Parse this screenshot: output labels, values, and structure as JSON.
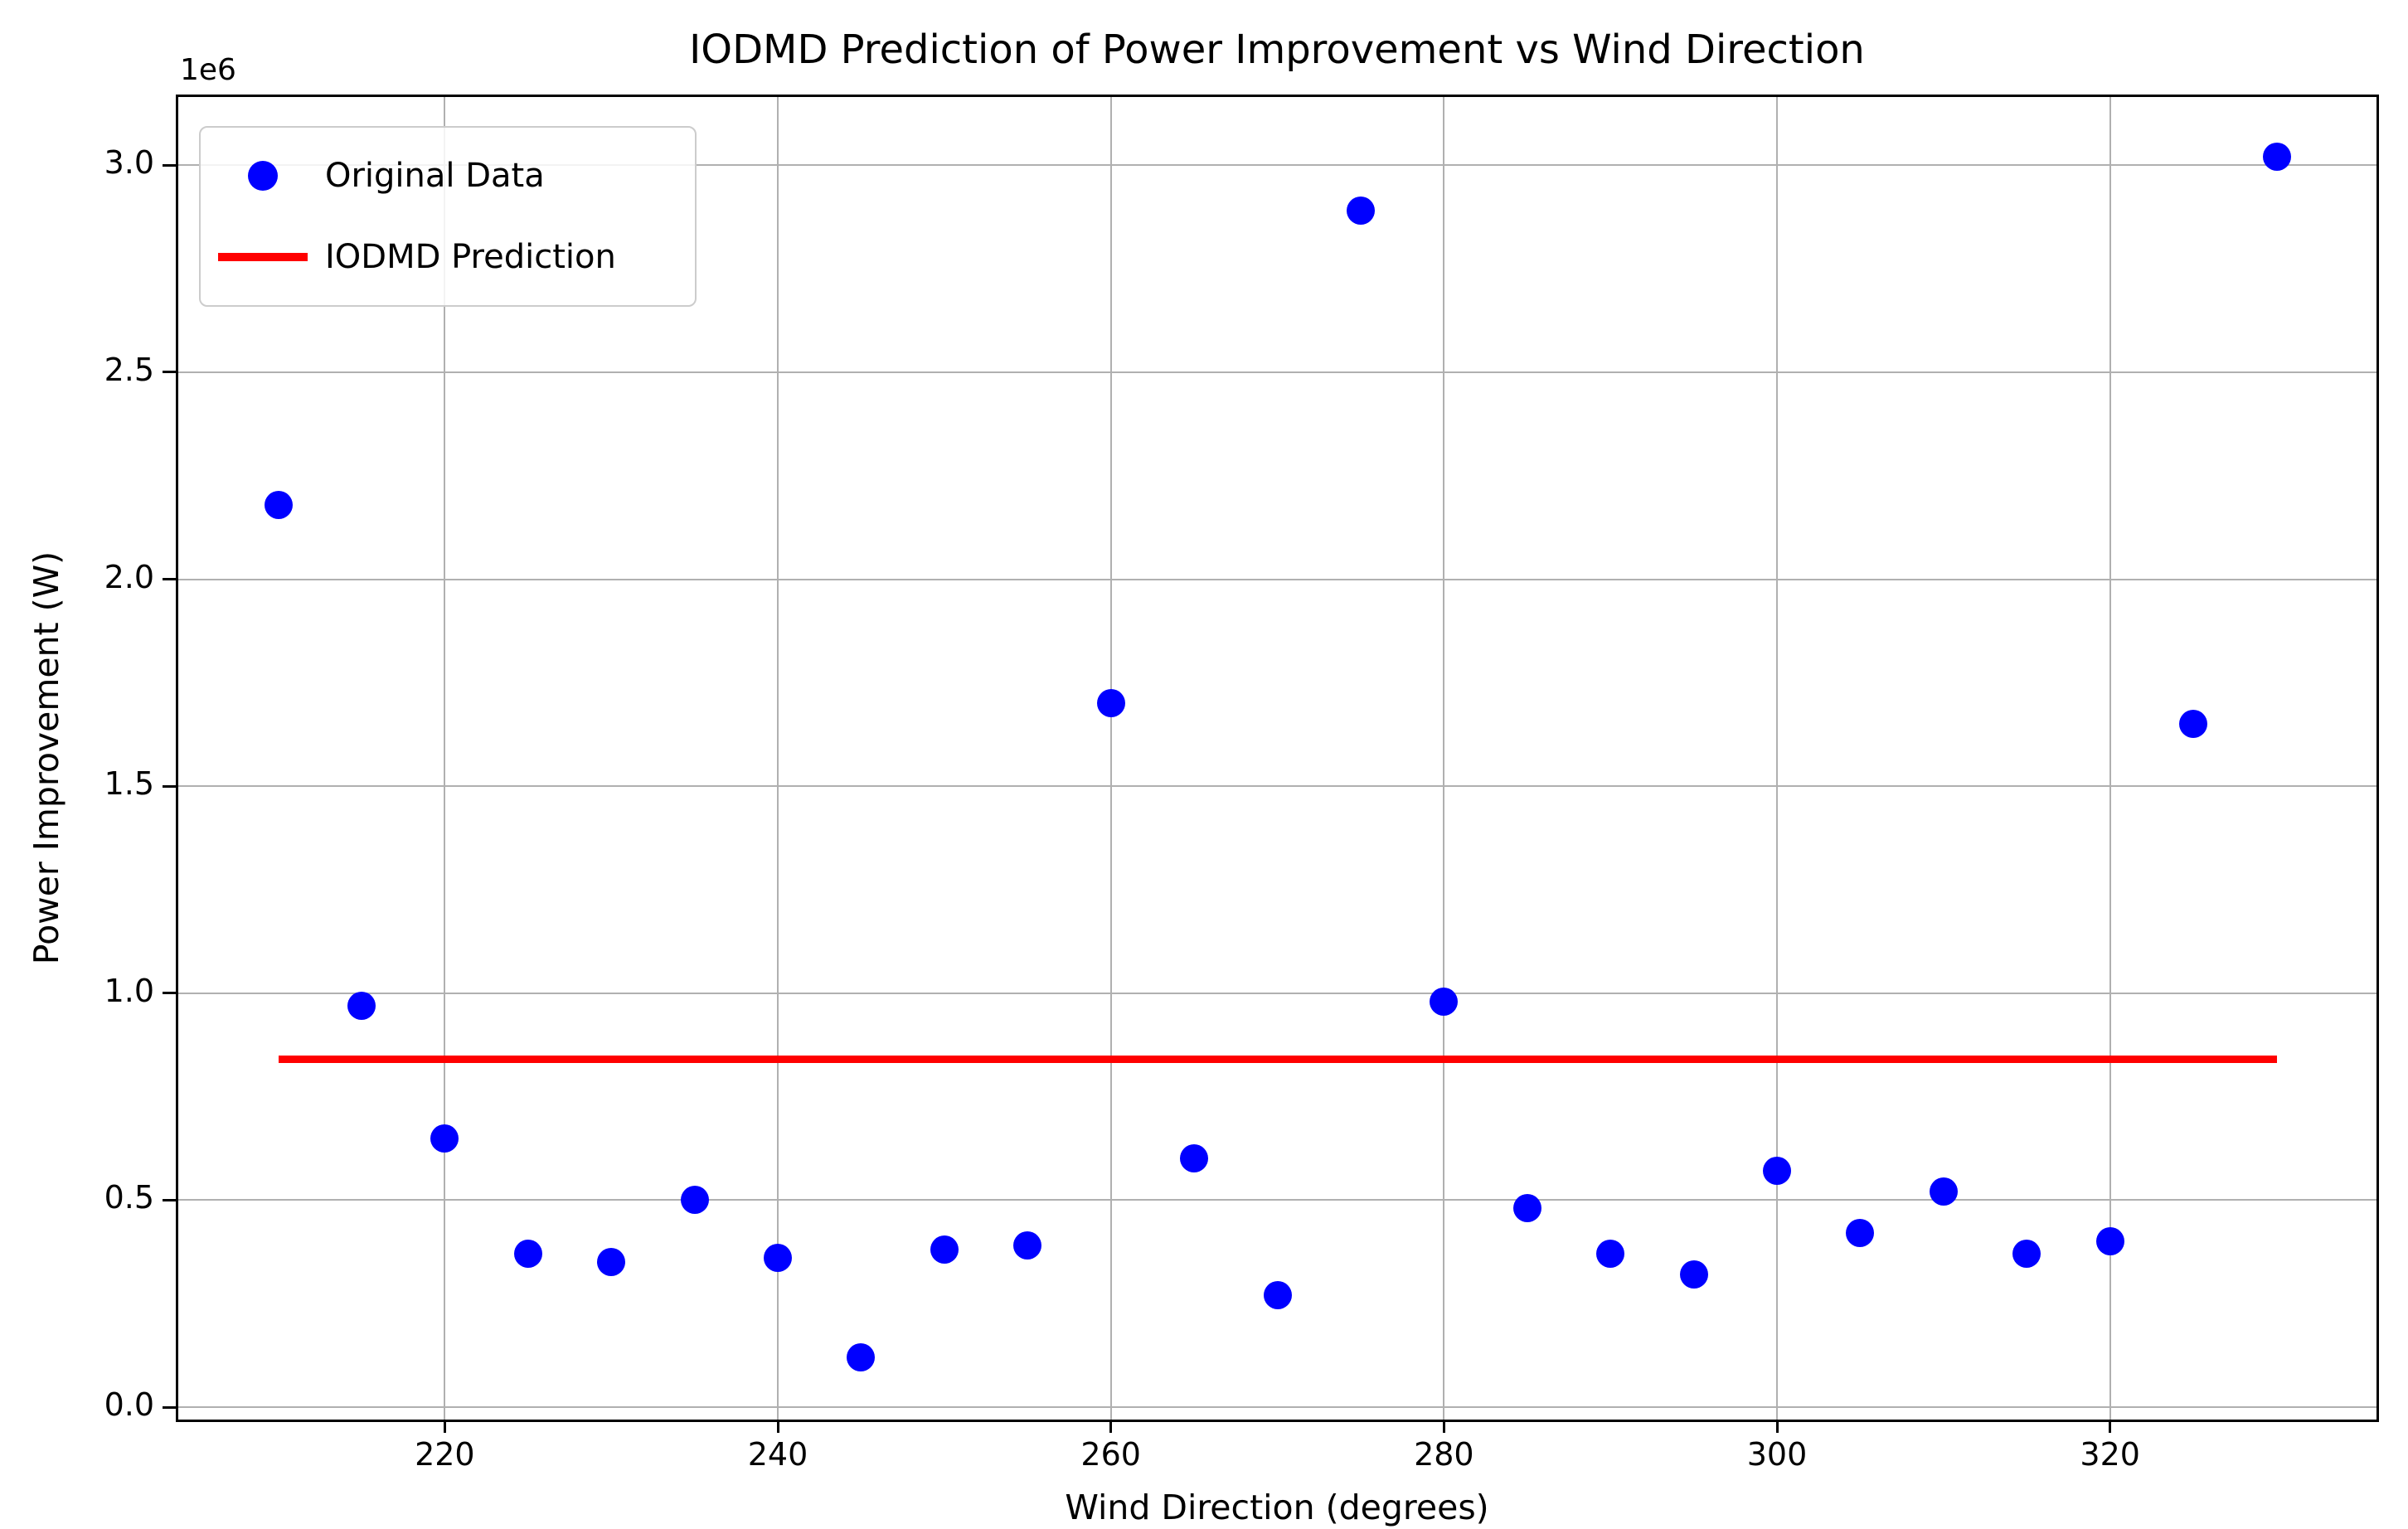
{
  "chart_data": {
    "type": "scatter",
    "title": "IODMD Prediction of Power Improvement vs Wind Direction",
    "xlabel": "Wind Direction (degrees)",
    "ylabel": "Power Improvement (W)",
    "y_axis_offset_text": "1e6",
    "xlim": [
      204,
      336
    ],
    "ylim_e6": [
      -0.03,
      3.165
    ],
    "xticks": [
      220,
      240,
      260,
      280,
      300,
      320
    ],
    "yticks_e6": [
      0.0,
      0.5,
      1.0,
      1.5,
      2.0,
      2.5,
      3.0
    ],
    "grid": true,
    "legend_position": "upper left",
    "series": [
      {
        "name": "Original Data",
        "type": "scatter",
        "color": "#0000ff",
        "x": [
          210,
          215,
          220,
          225,
          230,
          235,
          240,
          245,
          250,
          255,
          260,
          265,
          270,
          275,
          280,
          285,
          290,
          295,
          300,
          305,
          310,
          315,
          320,
          325,
          330
        ],
        "y_e6": [
          2.18,
          0.97,
          0.65,
          0.37,
          0.35,
          0.5,
          0.36,
          0.12,
          0.38,
          0.39,
          1.7,
          0.6,
          0.27,
          2.89,
          0.98,
          0.48,
          0.37,
          0.32,
          0.57,
          0.42,
          0.52,
          0.37,
          0.4,
          1.65,
          3.02
        ]
      },
      {
        "name": "IODMD Prediction",
        "type": "line",
        "color": "#ff0000",
        "x": [
          210,
          330
        ],
        "y_e6": [
          0.84,
          0.84
        ]
      }
    ]
  },
  "colors": {
    "scatter": "#0000ff",
    "prediction_line": "#ff0000",
    "grid": "#b0b0b0",
    "spine": "#000000",
    "text": "#000000",
    "legend_border": "#cccccc"
  }
}
